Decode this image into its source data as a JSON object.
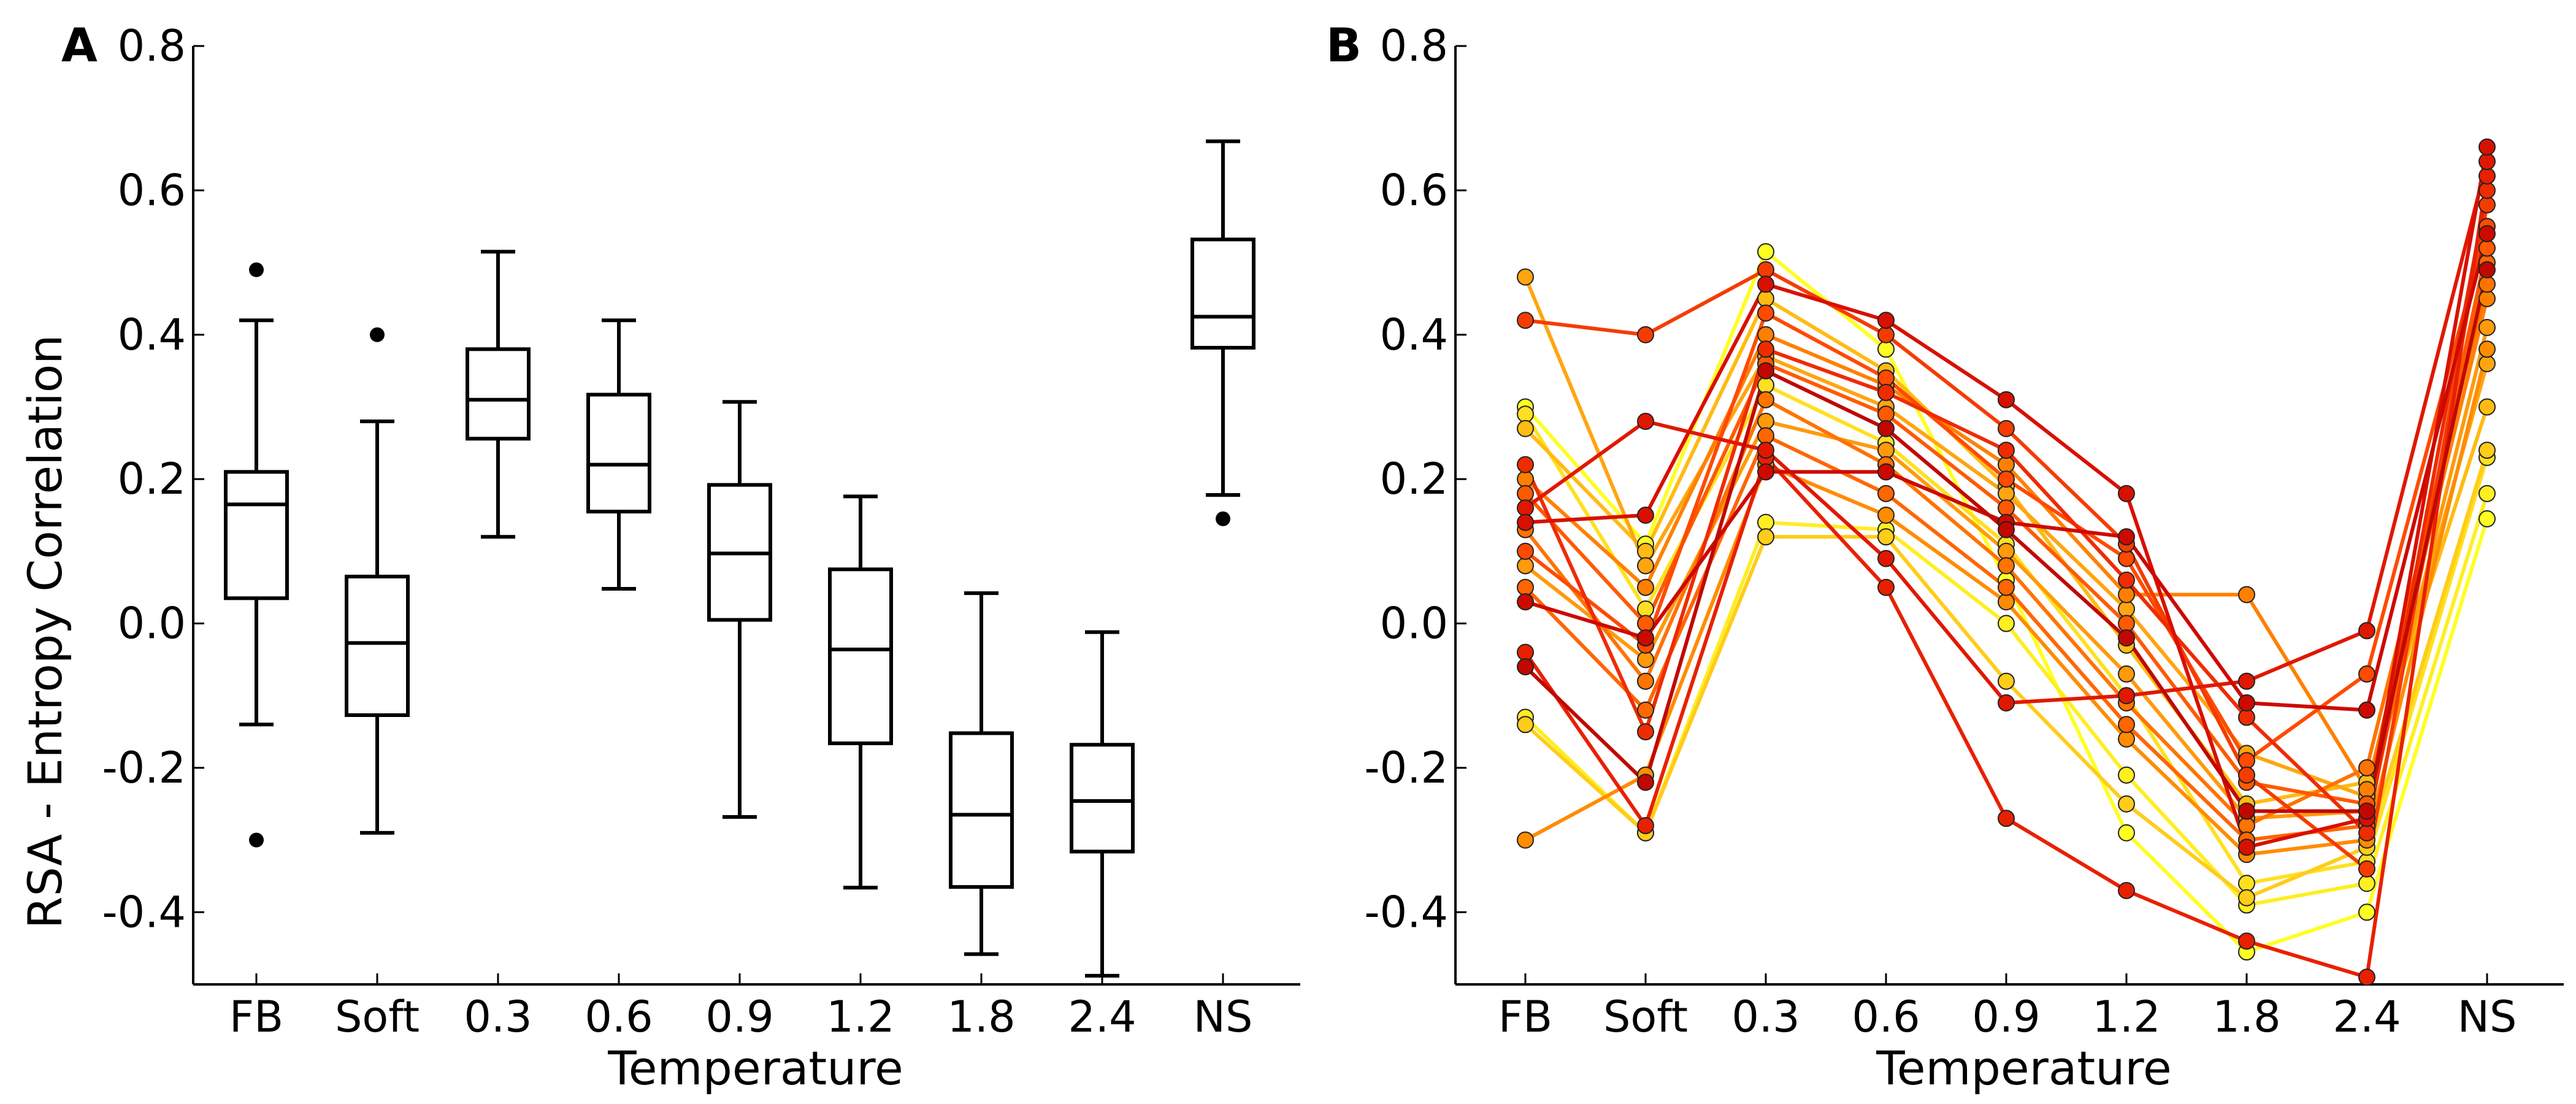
{
  "panels": [
    {
      "label": "A",
      "xlabel": "Temperature",
      "ylabel": "RSA - Entropy Correlation"
    },
    {
      "label": "B",
      "xlabel": "Temperature",
      "ylabel": ""
    }
  ],
  "chart_data": [
    {
      "type": "box",
      "title": "",
      "panel_label": "A",
      "xlabel": "Temperature",
      "ylabel": "RSA - Entropy Correlation",
      "categories": [
        "FB",
        "Soft",
        "0.3",
        "0.6",
        "0.9",
        "1.2",
        "1.8",
        "2.4",
        "NS"
      ],
      "ylim": [
        -0.5,
        0.8
      ],
      "yticks": [
        -0.4,
        -0.2,
        0.0,
        0.2,
        0.4,
        0.6,
        0.8
      ],
      "ytick_labels": [
        "-0.4",
        "-0.2",
        "0.0",
        "0.2",
        "0.4",
        "0.6",
        "0.8"
      ],
      "grid": false,
      "color": "#000000",
      "boxes": [
        {
          "category": "FB",
          "whisker_low": -0.14,
          "q1": 0.035,
          "median": 0.165,
          "q3": 0.21,
          "whisker_high": 0.42,
          "outliers": [
            0.49,
            -0.3
          ]
        },
        {
          "category": "Soft",
          "whisker_low": -0.29,
          "q1": -0.127,
          "median": -0.027,
          "q3": 0.065,
          "whisker_high": 0.28,
          "outliers": [
            0.4
          ]
        },
        {
          "category": "0.3",
          "whisker_low": 0.12,
          "q1": 0.256,
          "median": 0.31,
          "q3": 0.38,
          "whisker_high": 0.515,
          "outliers": []
        },
        {
          "category": "0.6",
          "whisker_low": 0.048,
          "q1": 0.155,
          "median": 0.22,
          "q3": 0.317,
          "whisker_high": 0.42,
          "outliers": []
        },
        {
          "category": "0.9",
          "whisker_low": -0.268,
          "q1": 0.005,
          "median": 0.097,
          "q3": 0.192,
          "whisker_high": 0.307,
          "outliers": []
        },
        {
          "category": "1.2",
          "whisker_low": -0.366,
          "q1": -0.166,
          "median": -0.036,
          "q3": 0.075,
          "whisker_high": 0.176,
          "outliers": []
        },
        {
          "category": "1.8",
          "whisker_low": -0.458,
          "q1": -0.365,
          "median": -0.265,
          "q3": -0.152,
          "whisker_high": 0.042,
          "outliers": []
        },
        {
          "category": "2.4",
          "whisker_low": -0.488,
          "q1": -0.316,
          "median": -0.246,
          "q3": -0.168,
          "whisker_high": -0.012,
          "outliers": []
        },
        {
          "category": "NS",
          "whisker_low": 0.178,
          "q1": 0.382,
          "median": 0.425,
          "q3": 0.532,
          "whisker_high": 0.668,
          "outliers": [
            0.145
          ]
        }
      ]
    },
    {
      "type": "line",
      "title": "",
      "panel_label": "B",
      "xlabel": "Temperature",
      "ylabel": "",
      "categories": [
        "FB",
        "Soft",
        "0.3",
        "0.6",
        "0.9",
        "1.2",
        "1.8",
        "2.4",
        "NS"
      ],
      "ylim": [
        -0.5,
        0.8
      ],
      "yticks": [
        -0.4,
        -0.2,
        0.0,
        0.2,
        0.4,
        0.6,
        0.8
      ],
      "ytick_labels": [
        "-0.4",
        "-0.2",
        "0.0",
        "0.2",
        "0.4",
        "0.6",
        "0.8"
      ],
      "grid": false,
      "marker": "circle",
      "series": [
        {
          "color": "#ffff22",
          "values": [
            0.3,
            0.11,
            0.515,
            0.38,
            0.06,
            -0.29,
            -0.455,
            -0.4,
            0.145
          ]
        },
        {
          "color": "#ffee22",
          "values": [
            -0.13,
            -0.29,
            0.14,
            0.13,
            0.0,
            -0.21,
            -0.39,
            -0.36,
            0.18
          ]
        },
        {
          "color": "#ffe020",
          "values": [
            0.29,
            0.02,
            0.33,
            0.25,
            0.11,
            -0.1,
            -0.36,
            -0.33,
            0.23
          ]
        },
        {
          "color": "#ffcc1a",
          "values": [
            -0.14,
            -0.29,
            0.12,
            0.12,
            -0.08,
            -0.25,
            -0.38,
            -0.31,
            0.24
          ]
        },
        {
          "color": "#ffbb11",
          "values": [
            0.27,
            0.1,
            0.45,
            0.35,
            0.19,
            -0.03,
            -0.25,
            -0.22,
            0.3
          ]
        },
        {
          "color": "#ffa510",
          "values": [
            0.48,
            0.08,
            0.37,
            0.3,
            0.18,
            0.02,
            -0.18,
            -0.24,
            0.36
          ]
        },
        {
          "color": "#ff9a0a",
          "values": [
            0.08,
            -0.05,
            0.28,
            0.24,
            0.1,
            -0.07,
            -0.27,
            -0.26,
            0.41
          ]
        },
        {
          "color": "#ff8c00",
          "values": [
            -0.3,
            -0.21,
            0.22,
            0.15,
            0.03,
            -0.16,
            -0.32,
            -0.3,
            0.38
          ]
        },
        {
          "color": "#ff8000",
          "values": [
            0.2,
            0.05,
            0.4,
            0.33,
            0.22,
            0.04,
            0.04,
            -0.23,
            0.45
          ]
        },
        {
          "color": "#ff7300",
          "values": [
            0.13,
            -0.08,
            0.31,
            0.22,
            0.08,
            -0.11,
            -0.28,
            -0.2,
            0.47
          ]
        },
        {
          "color": "#ff6600",
          "values": [
            0.05,
            -0.12,
            0.26,
            0.18,
            0.05,
            -0.14,
            -0.3,
            -0.28,
            0.5
          ]
        },
        {
          "color": "#ff5a00",
          "values": [
            0.18,
            0.0,
            0.36,
            0.29,
            0.16,
            0.0,
            -0.22,
            -0.25,
            0.52
          ]
        },
        {
          "color": "#ff4a00",
          "values": [
            0.1,
            -0.03,
            0.43,
            0.34,
            0.2,
            0.09,
            -0.19,
            -0.07,
            0.55
          ]
        },
        {
          "color": "#f53c00",
          "values": [
            0.42,
            0.4,
            0.49,
            0.4,
            0.27,
            0.11,
            -0.21,
            -0.34,
            0.58
          ]
        },
        {
          "color": "#ee2c00",
          "values": [
            0.22,
            -0.15,
            0.38,
            0.32,
            0.24,
            0.06,
            -0.13,
            -0.29,
            0.6
          ]
        },
        {
          "color": "#e82000",
          "values": [
            -0.04,
            -0.28,
            0.23,
            0.05,
            -0.27,
            -0.37,
            -0.44,
            -0.49,
            0.62
          ]
        },
        {
          "color": "#e01800",
          "values": [
            0.16,
            0.28,
            0.24,
            0.09,
            -0.11,
            -0.1,
            -0.08,
            -0.01,
            0.64
          ]
        },
        {
          "color": "#d81000",
          "values": [
            0.14,
            0.15,
            0.47,
            0.42,
            0.31,
            0.18,
            -0.31,
            -0.27,
            0.66
          ]
        },
        {
          "color": "#cc0a00",
          "values": [
            0.03,
            -0.02,
            0.21,
            0.21,
            0.14,
            0.12,
            -0.11,
            -0.12,
            0.54
          ]
        },
        {
          "color": "#c00800",
          "values": [
            -0.06,
            -0.22,
            0.35,
            0.27,
            0.13,
            -0.02,
            -0.26,
            -0.26,
            0.49
          ]
        }
      ]
    }
  ]
}
